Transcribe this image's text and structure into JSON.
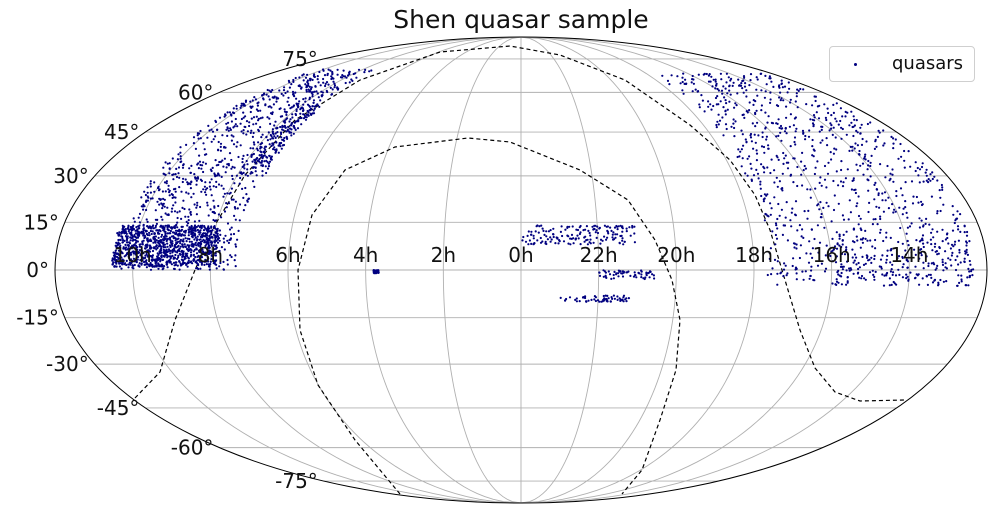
{
  "title": "Shen quasar sample",
  "legend": {
    "label": "quasars"
  },
  "colors": {
    "points": "#000080",
    "grid": "#b0b0b0",
    "dashed": "#000000"
  },
  "chart_data": {
    "type": "scatter",
    "projection": "mollweide",
    "title": "Shen quasar sample",
    "xlabel": "",
    "ylabel": "",
    "grid": true,
    "legend_position": "top-right",
    "ra_tick_labels": [
      "14h",
      "16h",
      "18h",
      "20h",
      "22h",
      "0h",
      "2h",
      "4h",
      "6h",
      "8h",
      "10h"
    ],
    "ra_tick_values_hours": [
      14,
      16,
      18,
      20,
      22,
      24,
      2,
      4,
      6,
      8,
      10
    ],
    "dec_tick_labels": [
      "-75°",
      "-60°",
      "-45°",
      "-30°",
      "-15°",
      "0°",
      "15°",
      "30°",
      "45°",
      "60°",
      "75°"
    ],
    "dec_tick_values_deg": [
      -75,
      -60,
      -45,
      -30,
      -15,
      0,
      15,
      30,
      45,
      60,
      75
    ],
    "series": [
      {
        "name": "quasars",
        "marker": "dot",
        "regions_ra_deg_dec_deg": [
          {
            "ra": [
              110,
              155
            ],
            "dec": [
              0,
              70
            ],
            "density": "high"
          },
          {
            "ra": [
              118,
              158
            ],
            "dec": [
              1,
              14
            ],
            "density": "high"
          },
          {
            "ra": [
              108,
              120
            ],
            "dec": [
              30,
              55
            ],
            "density": "medium"
          },
          {
            "ra": [
              185,
              265
            ],
            "dec": [
              -5,
              68
            ],
            "density": "high"
          },
          {
            "ra": [
              185,
              240
            ],
            "dec": [
              -5,
              10
            ],
            "density": "medium"
          },
          {
            "ra": [
              315,
              360
            ],
            "dec": [
              8,
              14
            ],
            "density": "medium"
          },
          {
            "ra": [
              308,
              330
            ],
            "dec": [
              -3,
              0
            ],
            "density": "low"
          },
          {
            "ra": [
              318,
              345
            ],
            "dec": [
              -10,
              -8
            ],
            "density": "low"
          },
          {
            "ra": [
              55,
              57
            ],
            "dec": [
              -1,
              0
            ],
            "density": "low"
          }
        ]
      }
    ],
    "overlay_curves": [
      {
        "style": "dashed",
        "description": ""
      },
      {
        "style": "dashed",
        "description": ""
      }
    ]
  }
}
